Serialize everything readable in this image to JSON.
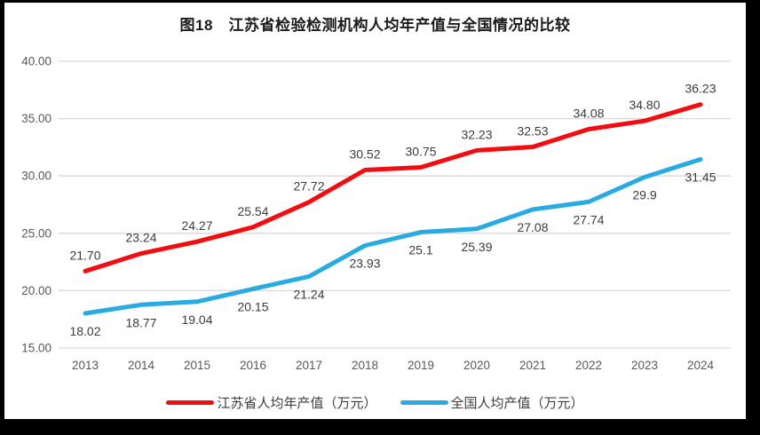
{
  "title": "图18　江苏省检验检测机构人均年产值与全国情况的比较",
  "colors": {
    "frame": "#000000",
    "background": "#ffffff",
    "gridline": "#d9d9d9",
    "axis_text": "#595959",
    "data_label": "#3b3b3b",
    "jiangsu_red": "#f20d11",
    "national_blue": "#29abe2"
  },
  "chart_data": {
    "type": "line",
    "title": "图18　江苏省检验检测机构人均年产值与全国情况的比较",
    "categories": [
      "2013",
      "2014",
      "2015",
      "2016",
      "2017",
      "2018",
      "2019",
      "2020",
      "2021",
      "2022",
      "2023",
      "2024"
    ],
    "series": [
      {
        "name": "江苏省人均年产值（万元）",
        "color": "#f20d11",
        "values": [
          21.7,
          23.24,
          24.27,
          25.54,
          27.72,
          30.52,
          30.75,
          32.23,
          32.53,
          34.08,
          34.8,
          36.23
        ],
        "labels": [
          "21.70",
          "23.24",
          "24.27",
          "25.54",
          "27.72",
          "30.52",
          "30.75",
          "32.23",
          "32.53",
          "34.08",
          "34.80",
          "36.23"
        ],
        "label_position": "above"
      },
      {
        "name": "全国人均产值（万元）",
        "color": "#29abe2",
        "values": [
          18.02,
          18.77,
          19.04,
          20.15,
          21.24,
          23.93,
          25.1,
          25.39,
          27.08,
          27.74,
          29.9,
          31.45
        ],
        "labels": [
          "18.02",
          "18.77",
          "19.04",
          "20.15",
          "21.24",
          "23.93",
          "25.1",
          "25.39",
          "27.08",
          "27.74",
          "29.9",
          "31.45"
        ],
        "label_position": "below"
      }
    ],
    "xlabel": "",
    "ylabel": "",
    "ylim": [
      15,
      40
    ],
    "ytick_step": 5,
    "ytick_labels": [
      "15.00",
      "20.00",
      "25.00",
      "30.00",
      "35.00",
      "40.00"
    ],
    "grid": true,
    "legend_position": "bottom"
  }
}
